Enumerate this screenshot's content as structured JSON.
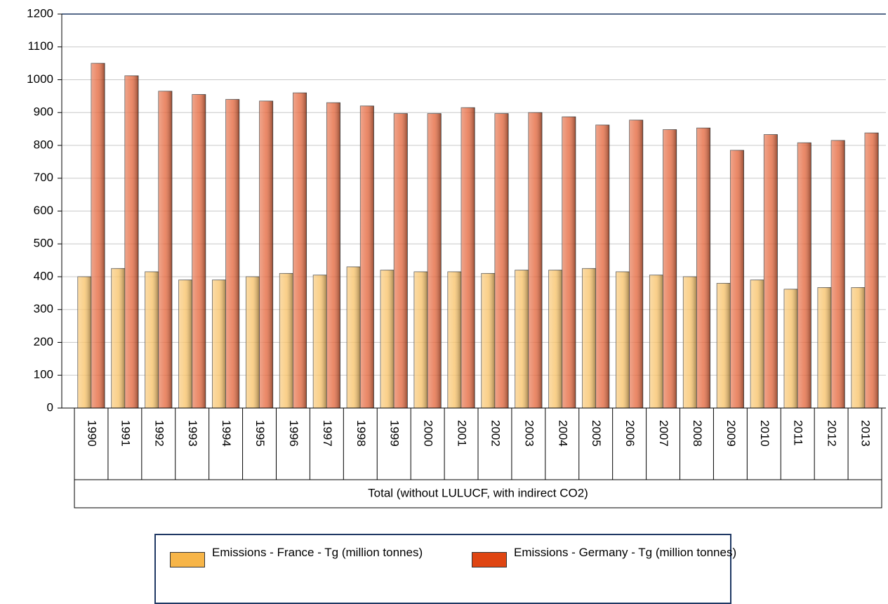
{
  "chart_data": {
    "type": "bar",
    "categories": [
      "1990",
      "1991",
      "1992",
      "1993",
      "1994",
      "1995",
      "1996",
      "1997",
      "1998",
      "1999",
      "2000",
      "2001",
      "2002",
      "2003",
      "2004",
      "2005",
      "2006",
      "2007",
      "2008",
      "2009",
      "2010",
      "2011",
      "2012",
      "2013"
    ],
    "category_group": "Total (without LULUCF, with indirect CO2)",
    "series": [
      {
        "name": "Emissions - France - Tg (million tonnes)",
        "color": "#f7b548",
        "values": [
          400,
          425,
          415,
          390,
          390,
          400,
          410,
          405,
          430,
          420,
          415,
          415,
          410,
          420,
          420,
          425,
          415,
          405,
          400,
          380,
          390,
          362,
          367,
          367
        ]
      },
      {
        "name": "Emissions - Germany - Tg (million tonnes)",
        "color": "#df4512",
        "values": [
          1050,
          1012,
          965,
          955,
          940,
          935,
          960,
          930,
          920,
          897,
          897,
          915,
          897,
          900,
          887,
          862,
          877,
          848,
          853,
          785,
          833,
          808,
          815,
          838
        ]
      }
    ],
    "ylim": [
      0,
      1200
    ],
    "yticks": [
      0,
      100,
      200,
      300,
      400,
      500,
      600,
      700,
      800,
      900,
      1000,
      1100,
      1200
    ],
    "grid": true
  }
}
